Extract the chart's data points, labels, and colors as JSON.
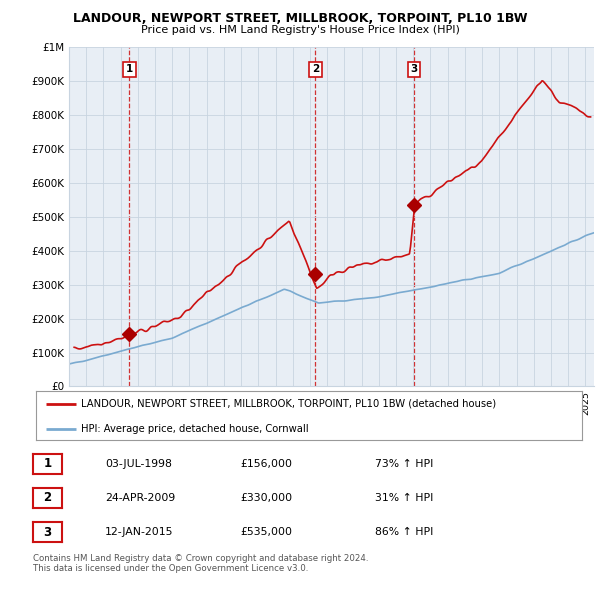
{
  "title": "LANDOUR, NEWPORT STREET, MILLBROOK, TORPOINT, PL10 1BW",
  "subtitle": "Price paid vs. HM Land Registry's House Price Index (HPI)",
  "ylim": [
    0,
    1000000
  ],
  "yticks": [
    0,
    100000,
    200000,
    300000,
    400000,
    500000,
    600000,
    700000,
    800000,
    900000,
    1000000
  ],
  "ytick_labels": [
    "£0",
    "£100K",
    "£200K",
    "£300K",
    "£400K",
    "£500K",
    "£600K",
    "£700K",
    "£800K",
    "£900K",
    "£1M"
  ],
  "hpi_color": "#7aaad0",
  "price_color": "#cc1111",
  "sale_marker_color": "#aa0000",
  "vline_color": "#cc1111",
  "chart_bg": "#e8eef5",
  "sales": [
    {
      "date_num": 1998.51,
      "price": 156000,
      "label": "1"
    },
    {
      "date_num": 2009.32,
      "price": 330000,
      "label": "2"
    },
    {
      "date_num": 2015.04,
      "price": 535000,
      "label": "3"
    }
  ],
  "legend_entries": [
    "LANDOUR, NEWPORT STREET, MILLBROOK, TORPOINT, PL10 1BW (detached house)",
    "HPI: Average price, detached house, Cornwall"
  ],
  "table_rows": [
    {
      "num": "1",
      "date": "03-JUL-1998",
      "price": "£156,000",
      "change": "73% ↑ HPI"
    },
    {
      "num": "2",
      "date": "24-APR-2009",
      "price": "£330,000",
      "change": "31% ↑ HPI"
    },
    {
      "num": "3",
      "date": "12-JAN-2015",
      "price": "£535,000",
      "change": "86% ↑ HPI"
    }
  ],
  "footer": "Contains HM Land Registry data © Crown copyright and database right 2024.\nThis data is licensed under the Open Government Licence v3.0.",
  "bg_color": "#ffffff",
  "grid_color": "#c8d4e0",
  "xmin": 1995.0,
  "xmax": 2025.5
}
